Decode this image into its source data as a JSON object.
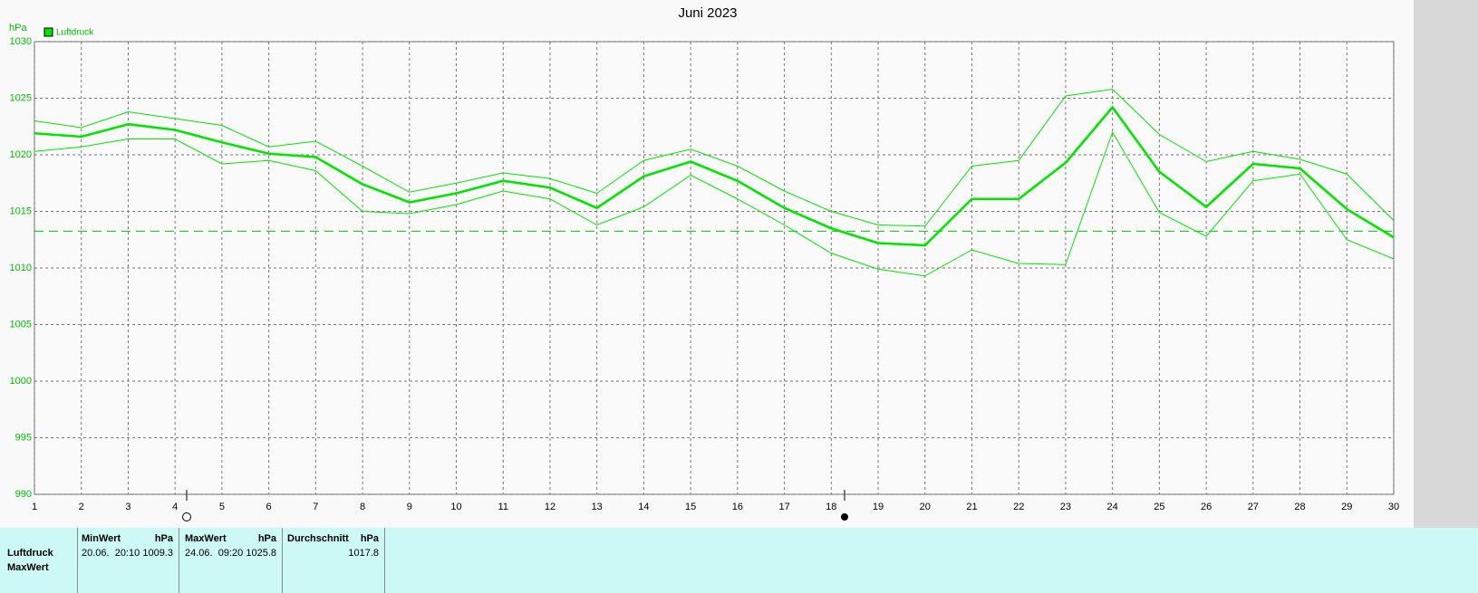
{
  "chart_data": {
    "type": "line",
    "title": "Juni 2023",
    "y_label": "hPa",
    "x": [
      1,
      2,
      3,
      4,
      5,
      6,
      7,
      8,
      9,
      10,
      11,
      12,
      13,
      14,
      15,
      16,
      17,
      18,
      19,
      20,
      21,
      22,
      23,
      24,
      25,
      26,
      27,
      28,
      29,
      30
    ],
    "series": [
      {
        "name": "Luftdruck",
        "color": "#00e600",
        "values": [
          1021.9,
          1021.6,
          1022.7,
          1022.2,
          1021.1,
          1020.1,
          1019.8,
          1017.4,
          1015.8,
          1016.6,
          1017.7,
          1017.1,
          1015.3,
          1018.1,
          1019.4,
          1017.7,
          1015.3,
          1013.5,
          1012.2,
          1012.0,
          1016.1,
          1016.1,
          1019.3,
          1024.2,
          1018.5,
          1015.4,
          1019.2,
          1018.8,
          1015.2,
          1012.7
        ],
        "max": [
          1023.0,
          1022.4,
          1023.8,
          1023.2,
          1022.6,
          1020.7,
          1021.2,
          1019.0,
          1016.7,
          1017.5,
          1018.4,
          1017.9,
          1016.6,
          1019.5,
          1020.5,
          1019.0,
          1016.8,
          1015.0,
          1013.8,
          1013.7,
          1019.0,
          1019.5,
          1025.2,
          1025.8,
          1021.8,
          1019.4,
          1020.3,
          1019.6,
          1018.3,
          1014.2
        ],
        "min": [
          1020.3,
          1020.7,
          1021.4,
          1021.4,
          1019.2,
          1019.5,
          1018.6,
          1015.0,
          1014.8,
          1015.6,
          1016.8,
          1016.1,
          1013.8,
          1015.4,
          1018.2,
          1016.1,
          1013.8,
          1011.3,
          1009.9,
          1009.3,
          1011.6,
          1010.4,
          1010.3,
          1022.0,
          1014.9,
          1012.8,
          1017.7,
          1018.3,
          1012.5,
          1010.8
        ]
      }
    ],
    "reference_line": 1013.25,
    "xlim": [
      1,
      30
    ],
    "xticks": [
      1,
      2,
      3,
      4,
      5,
      6,
      7,
      8,
      9,
      10,
      11,
      12,
      13,
      14,
      15,
      16,
      17,
      18,
      19,
      20,
      21,
      22,
      23,
      24,
      25,
      26,
      27,
      28,
      29,
      30
    ],
    "ylim": [
      990,
      1030
    ],
    "yticks": [
      990,
      995,
      1000,
      1005,
      1010,
      1015,
      1020,
      1025,
      1030
    ],
    "grid": true,
    "legend": "top-left"
  },
  "table": {
    "columns": [
      {
        "title": "MinWert",
        "unit": "hPa"
      },
      {
        "title": "MaxWert",
        "unit": "hPa"
      },
      {
        "title": "Durchschnitt",
        "unit": "hPa"
      }
    ],
    "rows": [
      [
        "Luftdruck",
        "20.06.  20:10",
        "1009.3",
        "24.06.  09:20",
        "1025.8",
        "1017.8"
      ]
    ],
    "next_row_label": "MaxWert"
  }
}
